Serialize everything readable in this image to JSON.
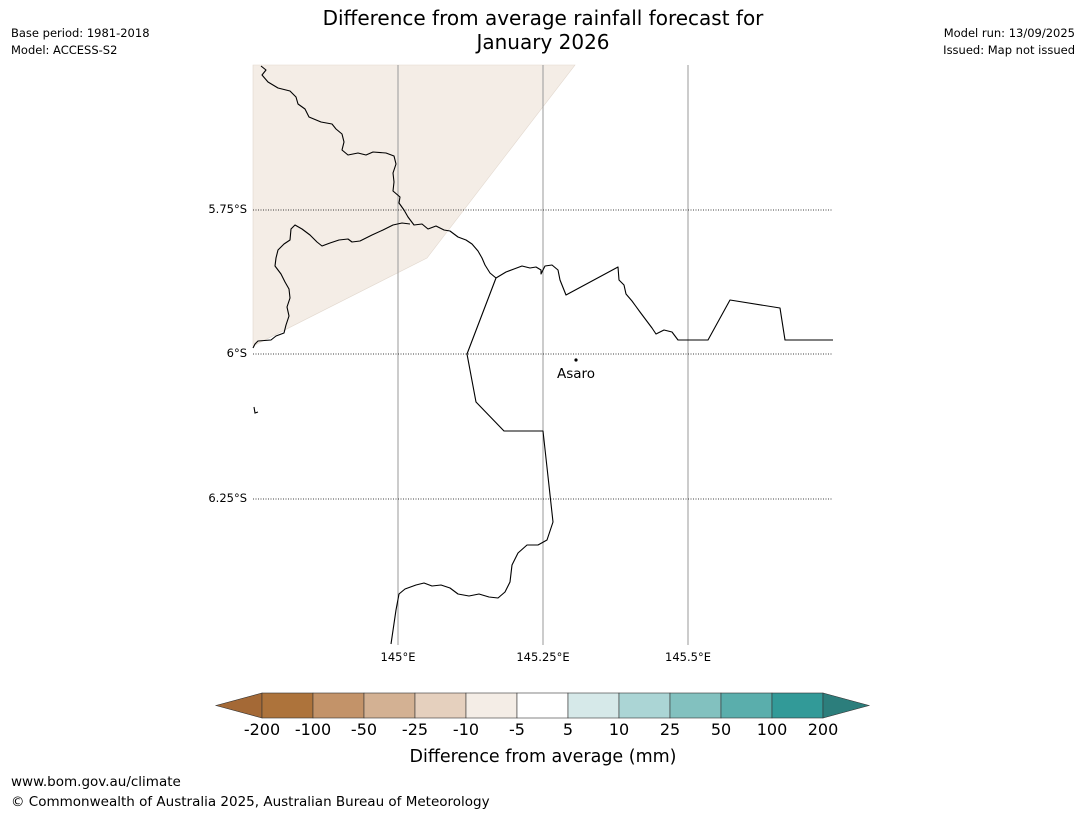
{
  "header": {
    "title_line1": "Difference from average rainfall forecast for",
    "title_line2": "January 2026",
    "base_period": "Base period: 1981-2018",
    "model": "Model: ACCESS-S2",
    "model_run": "Model run: 13/09/2025",
    "issued": "Issued: Map not issued"
  },
  "map": {
    "lat_labels": [
      "5.75°S",
      "6°S",
      "6.25°S"
    ],
    "lon_labels": [
      "145°E",
      "145.25°E",
      "145.5°E"
    ],
    "place": {
      "name": "Asaro"
    },
    "shaded_region_category": "-10 to -5",
    "colors": {
      "shaded": "#f4ede6",
      "border": "#000000",
      "graticule": "#999999"
    }
  },
  "colorbar": {
    "label": "Difference from average (mm)",
    "ticks": [
      "-200",
      "-100",
      "-50",
      "-25",
      "-10",
      "-5",
      "5",
      "10",
      "25",
      "50",
      "100",
      "200"
    ],
    "colors": [
      "#a46936",
      "#ad733b",
      "#c39369",
      "#d3b193",
      "#e5d0be",
      "#f4ede6",
      "#ffffff",
      "#d6e9e9",
      "#abd5d5",
      "#82c1bf",
      "#5aaeac",
      "#329a98",
      "#2c7e7c"
    ]
  },
  "footer": {
    "url": "www.bom.gov.au/climate",
    "copyright": "© Commonwealth of Australia 2025, Australian Bureau of Meteorology"
  }
}
